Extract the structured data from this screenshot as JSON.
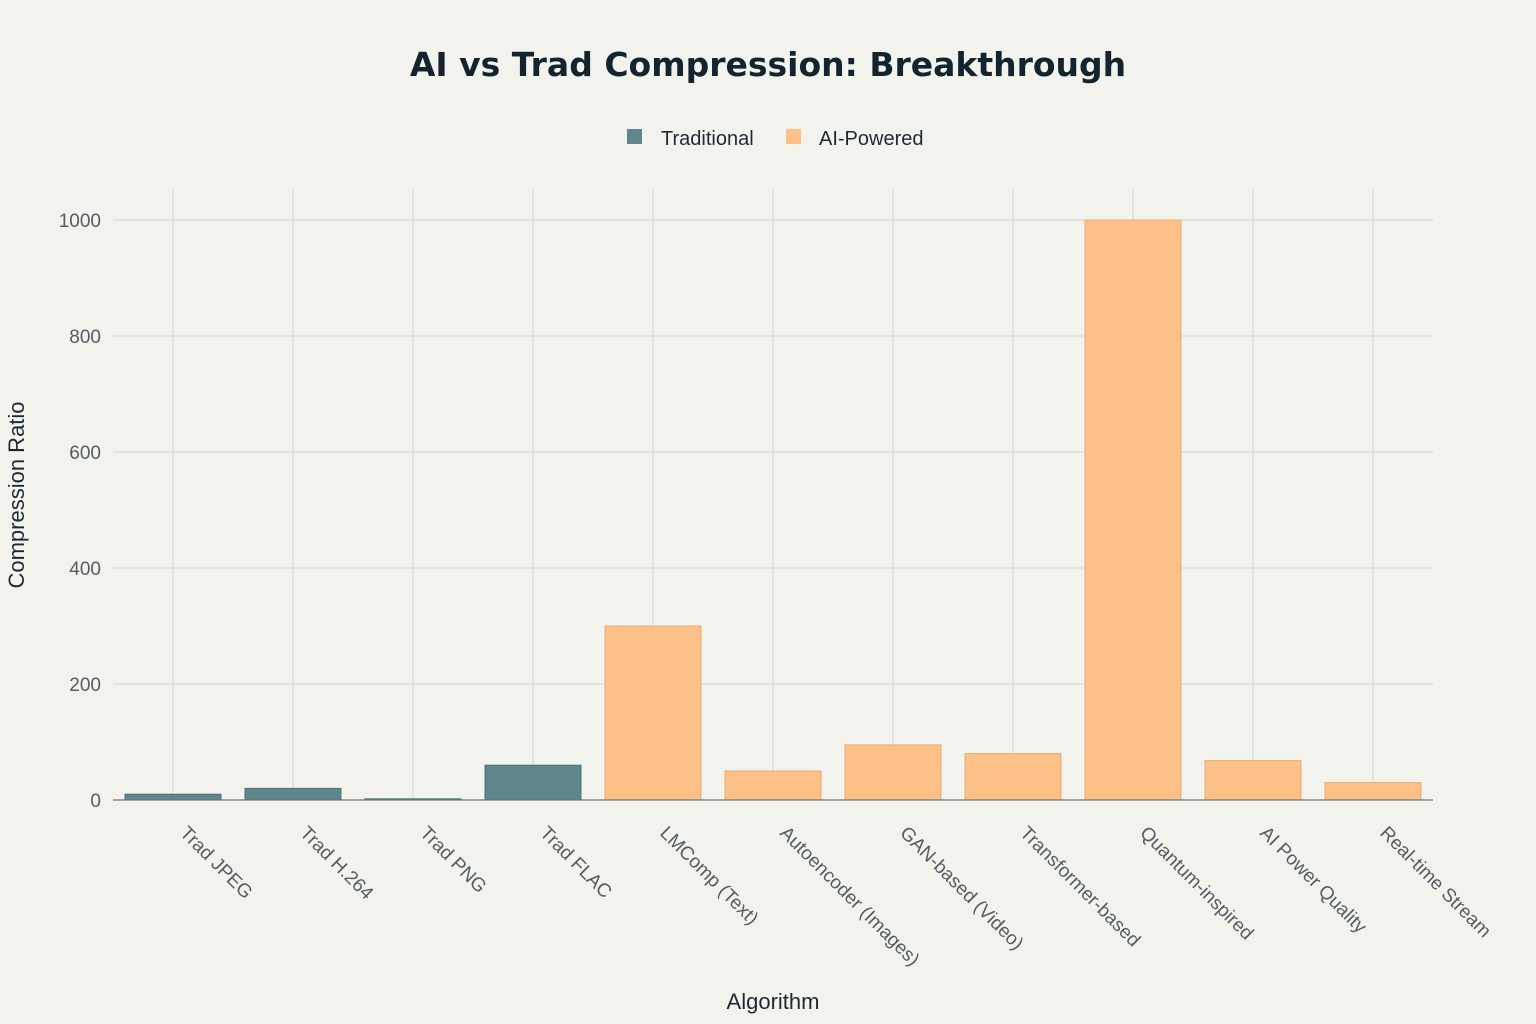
{
  "chart_data": {
    "type": "bar",
    "title": "AI vs Trad Compression: Breakthrough",
    "xlabel": "Algorithm",
    "ylabel": "Compression Ratio",
    "ylim": [
      0,
      1050
    ],
    "yticks": [
      0,
      200,
      400,
      600,
      800,
      1000
    ],
    "ytick_labels": [
      "0",
      "200",
      "400",
      "600",
      "800",
      "1000"
    ],
    "grid": true,
    "legend": {
      "placement": "top-center",
      "entries": [
        {
          "name": "Traditional",
          "color": "#5d868d"
        },
        {
          "name": "AI-Powered",
          "color": "#fdc086"
        }
      ]
    },
    "categories": [
      "Trad JPEG",
      "Trad H.264",
      "Trad PNG",
      "Trad FLAC",
      "LMComp (Text)",
      "Autoencoder (Images)",
      "GAN-based (Video)",
      "Transformer-based",
      "Quantum-inspired",
      "AI Power Quality",
      "Real-time Stream"
    ],
    "values": [
      10,
      20,
      2,
      60,
      300,
      50,
      95,
      80,
      1000,
      68,
      30
    ],
    "series_of": [
      "Traditional",
      "Traditional",
      "Traditional",
      "Traditional",
      "AI-Powered",
      "AI-Powered",
      "AI-Powered",
      "AI-Powered",
      "AI-Powered",
      "AI-Powered",
      "AI-Powered"
    ]
  }
}
